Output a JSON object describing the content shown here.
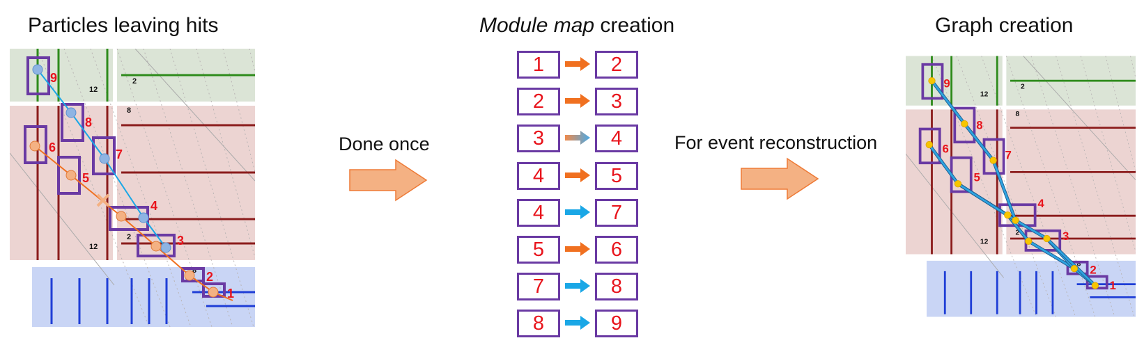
{
  "titles": {
    "left": "Particles leaving hits",
    "middle_italic": "Module map",
    "middle_rest": " creation",
    "right": "Graph creation"
  },
  "arrows": {
    "done_once": "Done once",
    "event_recon": "For event reconstruction"
  },
  "colors": {
    "box_border": "#6a3aa3",
    "box_number": "#e8141c",
    "orange": "#f07020",
    "blue": "#1aa7e6",
    "big_arrow": "#f4b183"
  },
  "module_map": [
    {
      "from": "1",
      "to": "2",
      "arrow": "orange"
    },
    {
      "from": "2",
      "to": "3",
      "arrow": "orange"
    },
    {
      "from": "3",
      "to": "4",
      "arrow": "gradient"
    },
    {
      "from": "4",
      "to": "5",
      "arrow": "orange"
    },
    {
      "from": "4",
      "to": "7",
      "arrow": "blue"
    },
    {
      "from": "5",
      "to": "6",
      "arrow": "orange"
    },
    {
      "from": "7",
      "to": "8",
      "arrow": "blue"
    },
    {
      "from": "8",
      "to": "9",
      "arrow": "blue"
    }
  ],
  "detector": {
    "module_labels": [
      "1",
      "2",
      "3",
      "4",
      "5",
      "6",
      "7",
      "8",
      "9"
    ],
    "layer_labels": [
      "12",
      "2",
      "8",
      "12",
      "2",
      "8"
    ]
  }
}
